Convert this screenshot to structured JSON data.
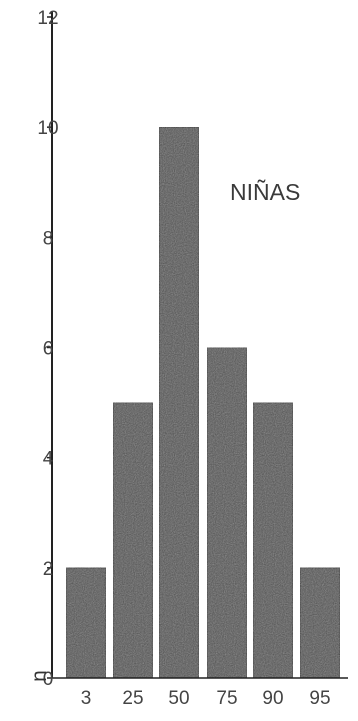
{
  "chart_data": {
    "type": "bar",
    "categories": [
      "3",
      "25",
      "50",
      "75",
      "90",
      "95"
    ],
    "values": [
      2,
      5,
      10,
      6,
      5,
      2
    ],
    "title": "",
    "annotation": "NIÑAS",
    "xlabel": "",
    "ylabel": "n",
    "ylim": [
      0,
      12
    ],
    "yticks": [
      0,
      2,
      4,
      6,
      8,
      10,
      12
    ],
    "grid": false,
    "bar_color": "#4e4e4e",
    "bar_edge_color": "#2a2a2a",
    "axis_color": "#222222",
    "text_color": "#444444"
  }
}
